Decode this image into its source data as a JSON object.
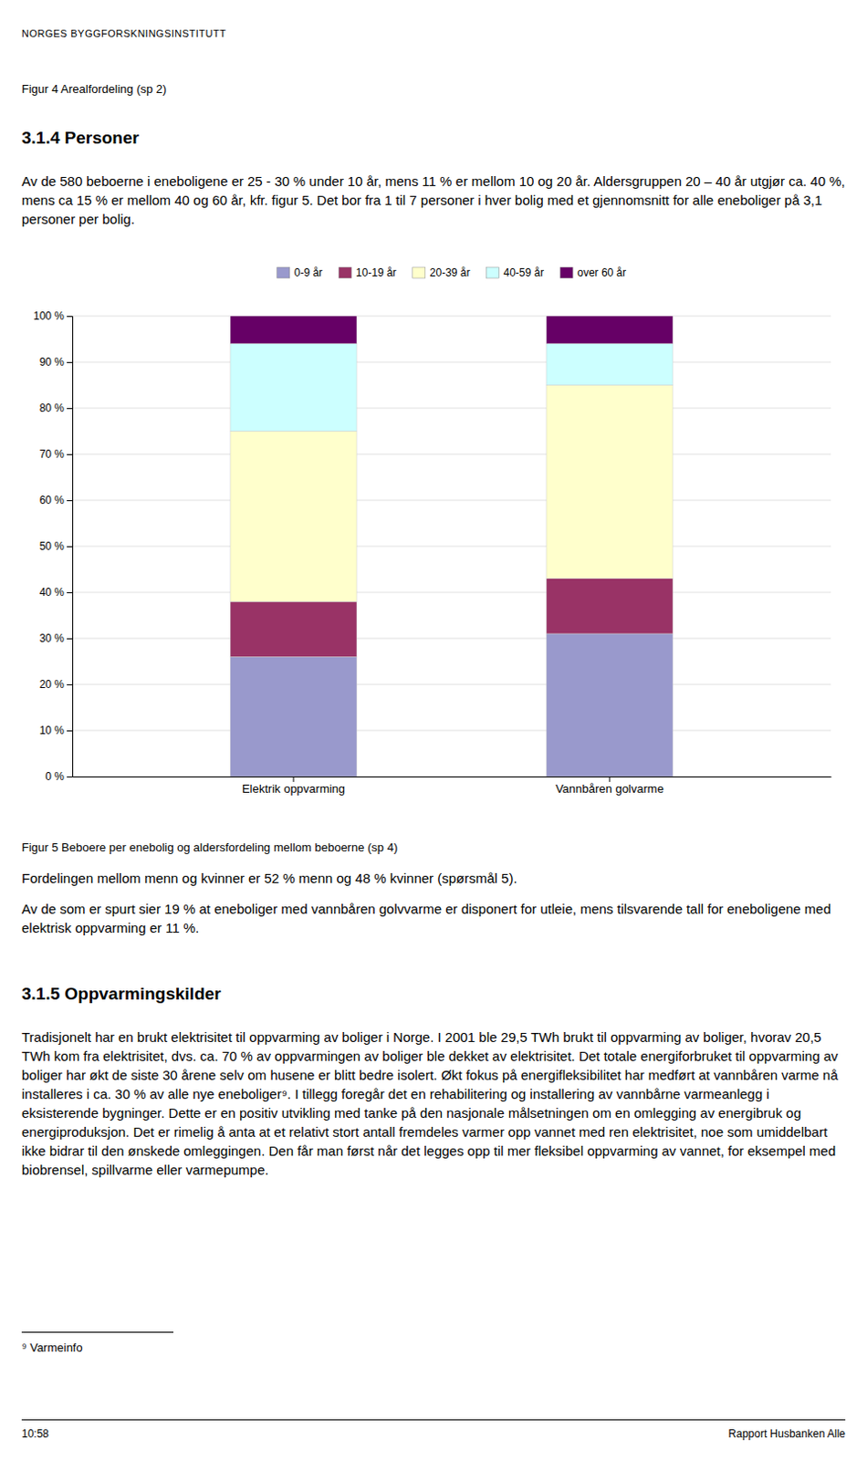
{
  "page_text": {
    "header": "NORGES BYGGFORSKNINGSINSTITUTT",
    "figure_4_caption": "Figur 4 Arealfordeling (sp 2)",
    "section_3_1_4_title": "3.1.4  Personer",
    "paragraph_1": "Av de 580 beboerne i eneboligene er 25 - 30 % under 10 år, mens 11 % er mellom 10 og 20 år. Aldersgruppen 20 – 40 år utgjør ca. 40 %, mens ca 15 % er mellom 40 og 60 år, kfr. figur 5. Det bor fra 1 til 7 personer i hver bolig med et gjennomsnitt for alle eneboliger på 3,1 personer per bolig.",
    "paragraph_2": "Fordelingen mellom menn og kvinner er 52 % menn og 48 % kvinner (spørsmål 5).",
    "paragraph_3": "Av de som er spurt sier 19 % at eneboliger med vannbåren golvvarme er disponert for utleie, mens tilsvarende tall for eneboligene med elektrisk oppvarming er 11 %.",
    "section_3_1_5_title": "3.1.5  Oppvarmingskilder",
    "paragraph_4": "Tradisjonelt har en brukt elektrisitet til oppvarming av boliger i Norge. I 2001 ble 29,5 TWh brukt til oppvarming av boliger, hvorav 20,5 TWh kom fra elektrisitet, dvs. ca. 70 % av oppvarmingen av boliger ble dekket av elektrisitet. Det totale energiforbruket til oppvarming av boliger har økt de siste 30 årene selv om husene er blitt bedre isolert.  Økt fokus på energifleksibilitet har medført at vannbåren varme nå installeres i ca. 30 % av alle nye eneboliger⁹. I tillegg foregår det en rehabilitering og installering av vannbårne varmeanlegg i eksisterende bygninger. Dette er en positiv utvikling med tanke på den nasjonale målsetningen om en omlegging av energibruk og energiproduksjon. Det er rimelig å anta at et relativt stort antall fremdeles varmer opp vannet med ren elektrisitet, noe som umiddelbart ikke bidrar til den ønskede omleggingen. Den får man først når det legges opp til mer fleksibel oppvarming av vannet, for eksempel med biobrensel, spillvarme eller varmepumpe.",
    "footnote": "⁹ Varmeinfo",
    "footer_left": "10:58",
    "footer_right": "Rapport Husbanken Alle"
  },
  "chart_data": {
    "type": "bar",
    "stacked": true,
    "title": "Figur 5 Beboere per enebolig og aldersfordeling mellom beboerne (sp 4)",
    "categories": [
      "Elektrik oppvarming",
      "Vannbåren golvarme"
    ],
    "series": [
      {
        "name": "0-9 år",
        "color": "#9999cc",
        "values": [
          26,
          31
        ]
      },
      {
        "name": "10-19 år",
        "color": "#993366",
        "values": [
          12,
          12
        ]
      },
      {
        "name": "20-39 år",
        "color": "#ffffcc",
        "values": [
          37,
          42
        ]
      },
      {
        "name": "40-59 år",
        "color": "#ccffff",
        "values": [
          19,
          9
        ]
      },
      {
        "name": "over 60 år",
        "color": "#660066",
        "values": [
          6,
          6
        ]
      }
    ],
    "ylim": [
      0,
      100
    ],
    "yticks": [
      {
        "value": 0,
        "label": "0 %"
      },
      {
        "value": 10,
        "label": "10 %"
      },
      {
        "value": 20,
        "label": "20 %"
      },
      {
        "value": 30,
        "label": "30 %"
      },
      {
        "value": 40,
        "label": "40 %"
      },
      {
        "value": 50,
        "label": "50 %"
      },
      {
        "value": 60,
        "label": "60 %"
      },
      {
        "value": 70,
        "label": "70 %"
      },
      {
        "value": 80,
        "label": "80 %"
      },
      {
        "value": 90,
        "label": "90 %"
      },
      {
        "value": 100,
        "label": "100 %"
      }
    ],
    "grid": true,
    "legend": "top"
  }
}
